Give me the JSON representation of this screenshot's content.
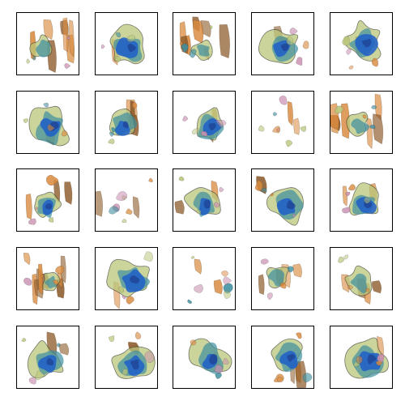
{
  "grid": {
    "rows": 5,
    "columns": 5,
    "colors": {
      "frame": "#000000",
      "background": "#ffffff",
      "orange": "#d98a3e",
      "orange_dark": "#8c5a2a",
      "blue": "#1f5fc8",
      "blue_dark": "#1c3f8f",
      "teal": "#3f8fa0",
      "green_yellow": "#b9c67a",
      "pink": "#c98fb0"
    },
    "tiles": [
      {
        "content": "orange-vertical-smudges",
        "orange": 0.8,
        "blue": 0.15,
        "green": 0.05
      },
      {
        "content": "blue-green-blob",
        "orange": 0.2,
        "blue": 0.6,
        "green": 0.2
      },
      {
        "content": "orange-vertical-smudges",
        "orange": 0.85,
        "blue": 0.1,
        "green": 0.05
      },
      {
        "content": "mixed-network-blob",
        "orange": 0.3,
        "blue": 0.4,
        "green": 0.3
      },
      {
        "content": "blue-green-blob",
        "orange": 0.2,
        "blue": 0.55,
        "green": 0.25
      },
      {
        "content": "green-blue-blob",
        "orange": 0.1,
        "blue": 0.5,
        "green": 0.4
      },
      {
        "content": "mixed-blob-orange-left",
        "orange": 0.45,
        "blue": 0.4,
        "green": 0.15
      },
      {
        "content": "blue-blob-orange-edge",
        "orange": 0.35,
        "blue": 0.5,
        "green": 0.15
      },
      {
        "content": "sparse-mixed-fragments",
        "orange": 0.3,
        "blue": 0.2,
        "green": 0.5
      },
      {
        "content": "orange-vertical-smudges",
        "orange": 0.8,
        "blue": 0.15,
        "green": 0.05
      },
      {
        "content": "orange-blue-blob",
        "orange": 0.5,
        "blue": 0.3,
        "green": 0.2
      },
      {
        "content": "sparse-faint-fragments",
        "orange": 0.3,
        "blue": 0.2,
        "green": 0.3
      },
      {
        "content": "blue-blob-orange-top",
        "orange": 0.4,
        "blue": 0.45,
        "green": 0.15
      },
      {
        "content": "blue-green-blob",
        "orange": 0.2,
        "blue": 0.5,
        "green": 0.3
      },
      {
        "content": "blue-blob-orange-rim",
        "orange": 0.35,
        "blue": 0.55,
        "green": 0.1
      },
      {
        "content": "orange-vertical-smudges",
        "orange": 0.95,
        "blue": 0.0,
        "green": 0.05
      },
      {
        "content": "blue-teal-blob",
        "orange": 0.1,
        "blue": 0.6,
        "green": 0.3
      },
      {
        "content": "sparse-faint-fragments",
        "orange": 0.3,
        "blue": 0.2,
        "green": 0.3
      },
      {
        "content": "orange-smudges-blue-right",
        "orange": 0.7,
        "blue": 0.25,
        "green": 0.05
      },
      {
        "content": "mixed-orange-fragments",
        "orange": 0.6,
        "blue": 0.25,
        "green": 0.15
      },
      {
        "content": "mixed-scattered-blob",
        "orange": 0.3,
        "blue": 0.35,
        "green": 0.35
      },
      {
        "content": "green-blue-blob",
        "orange": 0.2,
        "blue": 0.4,
        "green": 0.4
      },
      {
        "content": "green-teal-fragments",
        "orange": 0.2,
        "blue": 0.35,
        "green": 0.45
      },
      {
        "content": "blue-vertical-blob",
        "orange": 0.3,
        "blue": 0.5,
        "green": 0.2
      },
      {
        "content": "blue-teal-blob",
        "orange": 0.2,
        "blue": 0.55,
        "green": 0.25
      }
    ]
  }
}
